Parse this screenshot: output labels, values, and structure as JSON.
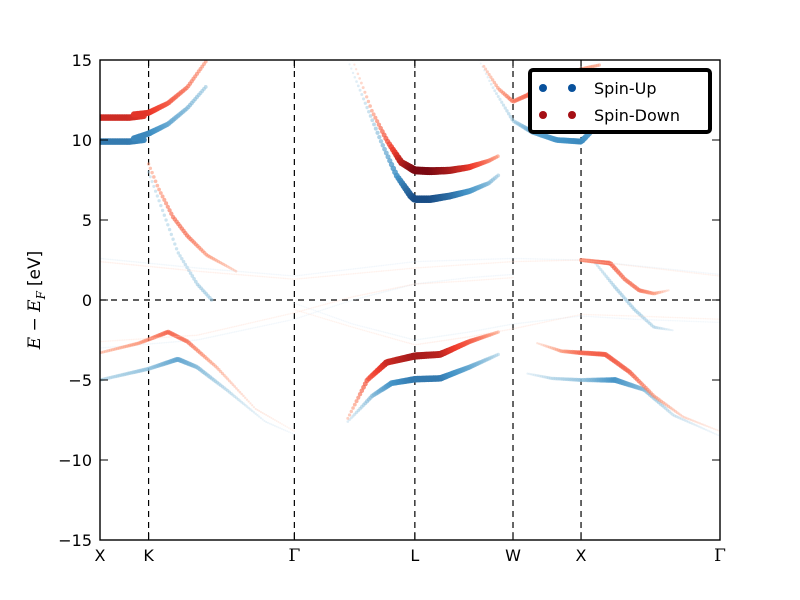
{
  "chart_data": {
    "type": "scatter",
    "title": "",
    "xlabel": "",
    "ylabel": {
      "math": "E − E",
      "subscript": "F",
      "unit": "[eV]"
    },
    "ylim": [
      -15,
      15
    ],
    "yticks": [
      "15",
      "10",
      "5",
      "0",
      "−5",
      "−10",
      "−15"
    ],
    "ytick_values": [
      15,
      10,
      5,
      0,
      -5,
      -10,
      -15
    ],
    "xlim": [
      0,
      6.38
    ],
    "kpoints": [
      {
        "label": "X",
        "x": 0
      },
      {
        "label": "K",
        "x": 0.5
      },
      {
        "label": "Γ",
        "x": 2.0
      },
      {
        "label": "L",
        "x": 3.24
      },
      {
        "label": "W",
        "x": 4.25
      },
      {
        "label": "X",
        "x": 4.95
      },
      {
        "label": "Γ",
        "x": 6.38
      }
    ],
    "fermi_level": 0,
    "grid": false,
    "legend": {
      "placement": "top-right",
      "entries": [
        {
          "label": "Spin-Up",
          "color": "#08519c"
        },
        {
          "label": "Spin-Down",
          "color": "#a50f15"
        }
      ]
    },
    "series": [
      {
        "name": "Spin-Up",
        "cmap": [
          "#deebf7",
          "#9ecae1",
          "#4292c6",
          "#08306b"
        ],
        "bands": [
          {
            "x": [
              0,
              0.3,
              0.45
            ],
            "y": [
              9.9,
              9.9,
              10.0
            ],
            "w": [
              0.75,
              0.75,
              0.7
            ]
          },
          {
            "x": [
              0.35,
              0.5,
              0.7,
              0.9,
              1.1
            ],
            "y": [
              10.1,
              10.4,
              11.0,
              12.0,
              13.4
            ],
            "w": [
              0.7,
              0.7,
              0.55,
              0.45,
              0.35
            ]
          },
          {
            "x": [
              0.5,
              0.65,
              0.8,
              1.0,
              1.15
            ],
            "y": [
              8.0,
              5.5,
              3.0,
              1.0,
              0.0
            ],
            "w": [
              0.25,
              0.3,
              0.3,
              0.35,
              0.35
            ]
          },
          {
            "x": [
              0,
              0.5,
              0.8,
              1.0,
              1.3,
              1.7,
              2.0
            ],
            "y": [
              -5.0,
              -4.3,
              -3.7,
              -4.2,
              -5.6,
              -7.6,
              -8.4
            ],
            "w": [
              0.3,
              0.4,
              0.55,
              0.45,
              0.3,
              0.12,
              0.05
            ]
          },
          {
            "x": [
              2.55,
              2.75,
              2.9,
              3.05,
              3.2,
              3.24,
              3.4,
              3.6,
              3.8,
              4.0,
              4.1
            ],
            "y": [
              15.0,
              12.0,
              9.8,
              7.8,
              6.5,
              6.3,
              6.3,
              6.5,
              6.8,
              7.3,
              7.8
            ],
            "w": [
              0.12,
              0.3,
              0.45,
              0.65,
              0.85,
              0.9,
              0.9,
              0.8,
              0.65,
              0.45,
              0.35
            ]
          },
          {
            "x": [
              2.55,
              2.8,
              3.0,
              3.24,
              3.5,
              3.8,
              4.1
            ],
            "y": [
              -7.6,
              -6.0,
              -5.2,
              -4.95,
              -4.9,
              -4.2,
              -3.4
            ],
            "w": [
              0.2,
              0.45,
              0.65,
              0.75,
              0.75,
              0.55,
              0.3
            ]
          },
          {
            "x": [
              3.9,
              4.05,
              4.25,
              4.45,
              4.7,
              4.95,
              5.05,
              5.1
            ],
            "y": [
              15.0,
              13.2,
              11.2,
              10.5,
              10.0,
              9.9,
              10.5,
              11.0
            ],
            "w": [
              0.1,
              0.22,
              0.35,
              0.55,
              0.65,
              0.7,
              0.6,
              0.5
            ]
          },
          {
            "x": [
              4.4,
              4.65,
              4.95,
              5.3,
              5.6,
              5.9,
              6.38
            ],
            "y": [
              -4.6,
              -4.9,
              -5.0,
              -5.0,
              -5.6,
              -7.2,
              -8.5
            ],
            "w": [
              0.15,
              0.3,
              0.4,
              0.65,
              0.45,
              0.25,
              0.08
            ]
          },
          {
            "x": [
              5.1,
              5.3,
              5.5,
              5.7,
              5.9
            ],
            "y": [
              2.3,
              0.8,
              -0.6,
              -1.7,
              -1.9
            ],
            "w": [
              0.25,
              0.35,
              0.35,
              0.3,
              0.12
            ]
          },
          {
            "x": [
              0,
              1.0,
              2.0,
              3.24,
              4.25,
              4.95,
              6.38
            ],
            "y": [
              2.6,
              2.0,
              1.5,
              2.4,
              2.6,
              2.5,
              1.6
            ],
            "w": [
              0.06,
              0.06,
              0.05,
              0.05,
              0.05,
              0.06,
              0.05
            ]
          },
          {
            "x": [
              0,
              1.0,
              2.0,
              2.6,
              3.24,
              3.8,
              4.25
            ],
            "y": [
              -3.0,
              -2.5,
              -1.2,
              0.0,
              1.0,
              1.4,
              1.6
            ],
            "w": [
              0.05,
              0.06,
              0.05,
              0.06,
              0.06,
              0.05,
              0.05
            ]
          },
          {
            "x": [
              2.0,
              2.6,
              3.24,
              3.8,
              4.25,
              4.95,
              5.5,
              6.38
            ],
            "y": [
              -0.2,
              -1.5,
              -2.5,
              -2.0,
              -1.5,
              -1.0,
              -1.2,
              -1.4
            ],
            "w": [
              0.04,
              0.05,
              0.06,
              0.06,
              0.06,
              0.05,
              0.05,
              0.04
            ]
          }
        ]
      },
      {
        "name": "Spin-Down",
        "cmap": [
          "#fee0d2",
          "#fc9272",
          "#ef3b2c",
          "#67000d"
        ],
        "bands": [
          {
            "x": [
              0,
              0.3,
              0.45
            ],
            "y": [
              11.4,
              11.4,
              11.5
            ],
            "w": [
              0.75,
              0.75,
              0.7
            ]
          },
          {
            "x": [
              0.35,
              0.5,
              0.7,
              0.9,
              1.1
            ],
            "y": [
              11.6,
              11.7,
              12.3,
              13.3,
              15.0
            ],
            "w": [
              0.7,
              0.7,
              0.55,
              0.45,
              0.35
            ]
          },
          {
            "x": [
              0.5,
              0.6,
              0.75,
              0.9,
              1.1,
              1.4
            ],
            "y": [
              8.5,
              7.0,
              5.2,
              4.0,
              2.8,
              1.8
            ],
            "w": [
              0.3,
              0.35,
              0.45,
              0.45,
              0.35,
              0.2
            ]
          },
          {
            "x": [
              0,
              0.4,
              0.7,
              0.9,
              1.2,
              1.6,
              2.0
            ],
            "y": [
              -3.3,
              -2.7,
              -2.0,
              -2.6,
              -4.2,
              -6.8,
              -8.2
            ],
            "w": [
              0.25,
              0.35,
              0.5,
              0.45,
              0.3,
              0.12,
              0.05
            ]
          },
          {
            "x": [
              2.6,
              2.8,
              2.95,
              3.1,
              3.24,
              3.4,
              3.6,
              3.8,
              4.0,
              4.1
            ],
            "y": [
              15.0,
              11.8,
              10.0,
              8.6,
              8.1,
              8.05,
              8.1,
              8.3,
              8.7,
              9.0
            ],
            "w": [
              0.12,
              0.35,
              0.55,
              0.8,
              0.95,
              0.95,
              0.85,
              0.7,
              0.45,
              0.35
            ]
          },
          {
            "x": [
              2.55,
              2.75,
              2.95,
              3.24,
              3.5,
              3.8,
              4.1
            ],
            "y": [
              -7.4,
              -5.0,
              -3.9,
              -3.5,
              -3.4,
              -2.6,
              -2.0
            ],
            "w": [
              0.25,
              0.55,
              0.75,
              0.85,
              0.8,
              0.55,
              0.3
            ]
          },
          {
            "x": [
              3.95,
              4.1,
              4.25,
              4.4,
              4.6,
              4.8,
              5.0,
              5.15
            ],
            "y": [
              14.6,
              13.2,
              12.4,
              12.8,
              13.7,
              14.2,
              14.5,
              14.7
            ],
            "w": [
              0.25,
              0.35,
              0.45,
              0.5,
              0.45,
              0.4,
              0.35,
              0.3
            ]
          },
          {
            "x": [
              4.5,
              4.75,
              4.95,
              5.2,
              5.45,
              5.7,
              6.0,
              6.38
            ],
            "y": [
              -2.7,
              -3.2,
              -3.3,
              -3.4,
              -4.5,
              -6.0,
              -7.3,
              -8.2
            ],
            "w": [
              0.15,
              0.35,
              0.5,
              0.55,
              0.5,
              0.35,
              0.2,
              0.08
            ]
          },
          {
            "x": [
              4.95,
              5.1,
              5.25,
              5.4,
              5.55,
              5.7,
              5.85
            ],
            "y": [
              2.5,
              2.4,
              2.3,
              1.3,
              0.6,
              0.4,
              0.6
            ],
            "w": [
              0.4,
              0.45,
              0.5,
              0.45,
              0.45,
              0.35,
              0.15
            ]
          },
          {
            "x": [
              0,
              1.0,
              2.0,
              3.24,
              4.25,
              4.95,
              6.38
            ],
            "y": [
              2.4,
              1.8,
              1.3,
              2.0,
              2.4,
              2.5,
              1.5
            ],
            "w": [
              0.06,
              0.06,
              0.05,
              0.05,
              0.05,
              0.06,
              0.05
            ]
          },
          {
            "x": [
              0,
              1.0,
              2.0,
              2.6,
              3.24,
              3.8,
              4.25
            ],
            "y": [
              -2.6,
              -2.2,
              -0.8,
              0.2,
              1.0,
              1.2,
              1.4
            ],
            "w": [
              0.05,
              0.06,
              0.05,
              0.06,
              0.06,
              0.05,
              0.05
            ]
          },
          {
            "x": [
              2.0,
              2.6,
              3.24,
              3.8,
              4.25,
              4.95,
              5.5,
              6.38
            ],
            "y": [
              -0.6,
              -1.7,
              -2.8,
              -2.3,
              -1.8,
              -0.9,
              -1.0,
              -1.2
            ],
            "w": [
              0.04,
              0.05,
              0.06,
              0.06,
              0.06,
              0.05,
              0.05,
              0.04
            ]
          }
        ]
      }
    ]
  }
}
